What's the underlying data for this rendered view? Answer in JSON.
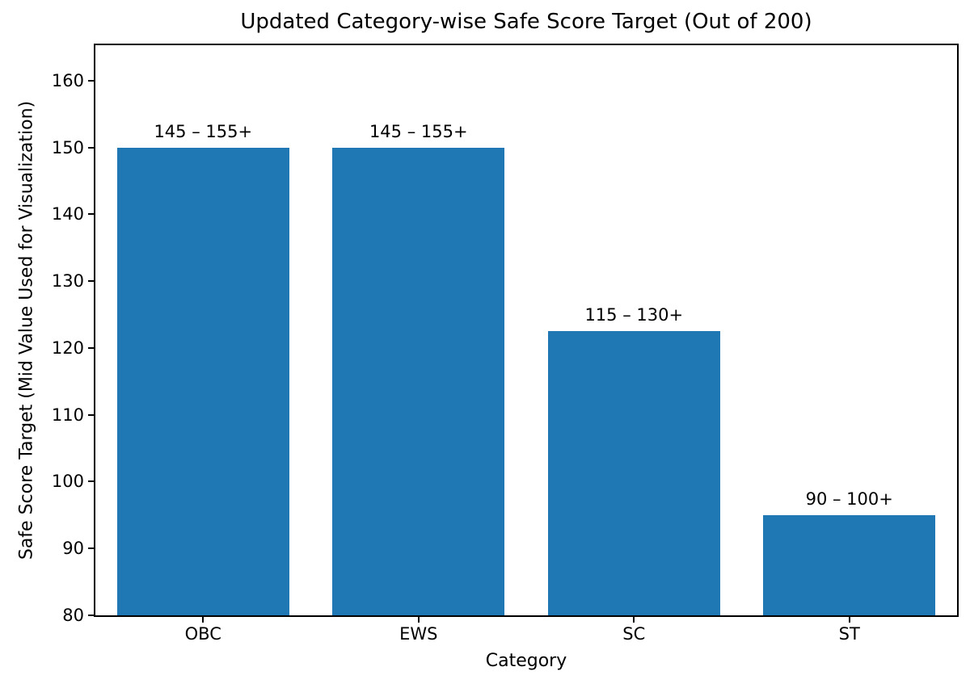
{
  "chart_data": {
    "type": "bar",
    "title": "Updated Category-wise Safe Score Target (Out of 200)",
    "xlabel": "Category",
    "ylabel": "Safe Score Target (Mid Value Used for Visualization)",
    "categories": [
      "OBC",
      "EWS",
      "SC",
      "ST"
    ],
    "values": [
      150,
      150,
      122.5,
      95
    ],
    "bar_labels": [
      "145 – 155+",
      "145 – 155+",
      "115 – 130+",
      "90 – 100+"
    ],
    "bar_color": "#1f77b4",
    "text_color": "#000000",
    "spine_color": "#000000",
    "ylim": [
      80,
      165.3
    ],
    "yticks": [
      80,
      90,
      100,
      110,
      120,
      130,
      140,
      150,
      160
    ],
    "bar_width_fraction": 0.8,
    "grid": false,
    "legend_position": "none"
  }
}
